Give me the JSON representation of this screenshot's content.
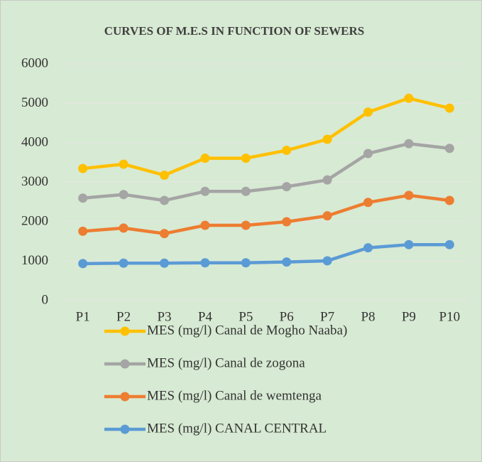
{
  "chart_data": {
    "type": "line",
    "title": "CURVES OF M.E.S IN FUNCTION OF SEWERS",
    "categories": [
      "P1",
      "P2",
      "P3",
      "P4",
      "P5",
      "P6",
      "P7",
      "P8",
      "P9",
      "P10"
    ],
    "series": [
      {
        "name": "MES (mg/l) Canal de Mogho Naaba)",
        "color": "#ffc000",
        "values": [
          3350,
          3460,
          3180,
          3610,
          3610,
          3810,
          4090,
          4780,
          5130,
          4880
        ]
      },
      {
        "name": "MES (mg/l) Canal de zogona",
        "color": "#a5a5a5",
        "values": [
          2600,
          2690,
          2540,
          2770,
          2770,
          2890,
          3060,
          3730,
          3980,
          3860
        ]
      },
      {
        "name": "MES (mg/l) Canal de wemtenga",
        "color": "#ed7d31",
        "values": [
          1760,
          1840,
          1700,
          1910,
          1910,
          2000,
          2150,
          2490,
          2670,
          2540
        ]
      },
      {
        "name": "MES (mg/l) CANAL CENTRAL",
        "color": "#5b9bd5",
        "values": [
          940,
          950,
          950,
          960,
          960,
          980,
          1010,
          1340,
          1420,
          1420
        ]
      }
    ],
    "ylim": [
      0,
      6000
    ],
    "yticks": [
      0,
      1000,
      2000,
      3000,
      4000,
      5000,
      6000
    ],
    "grid": true
  }
}
